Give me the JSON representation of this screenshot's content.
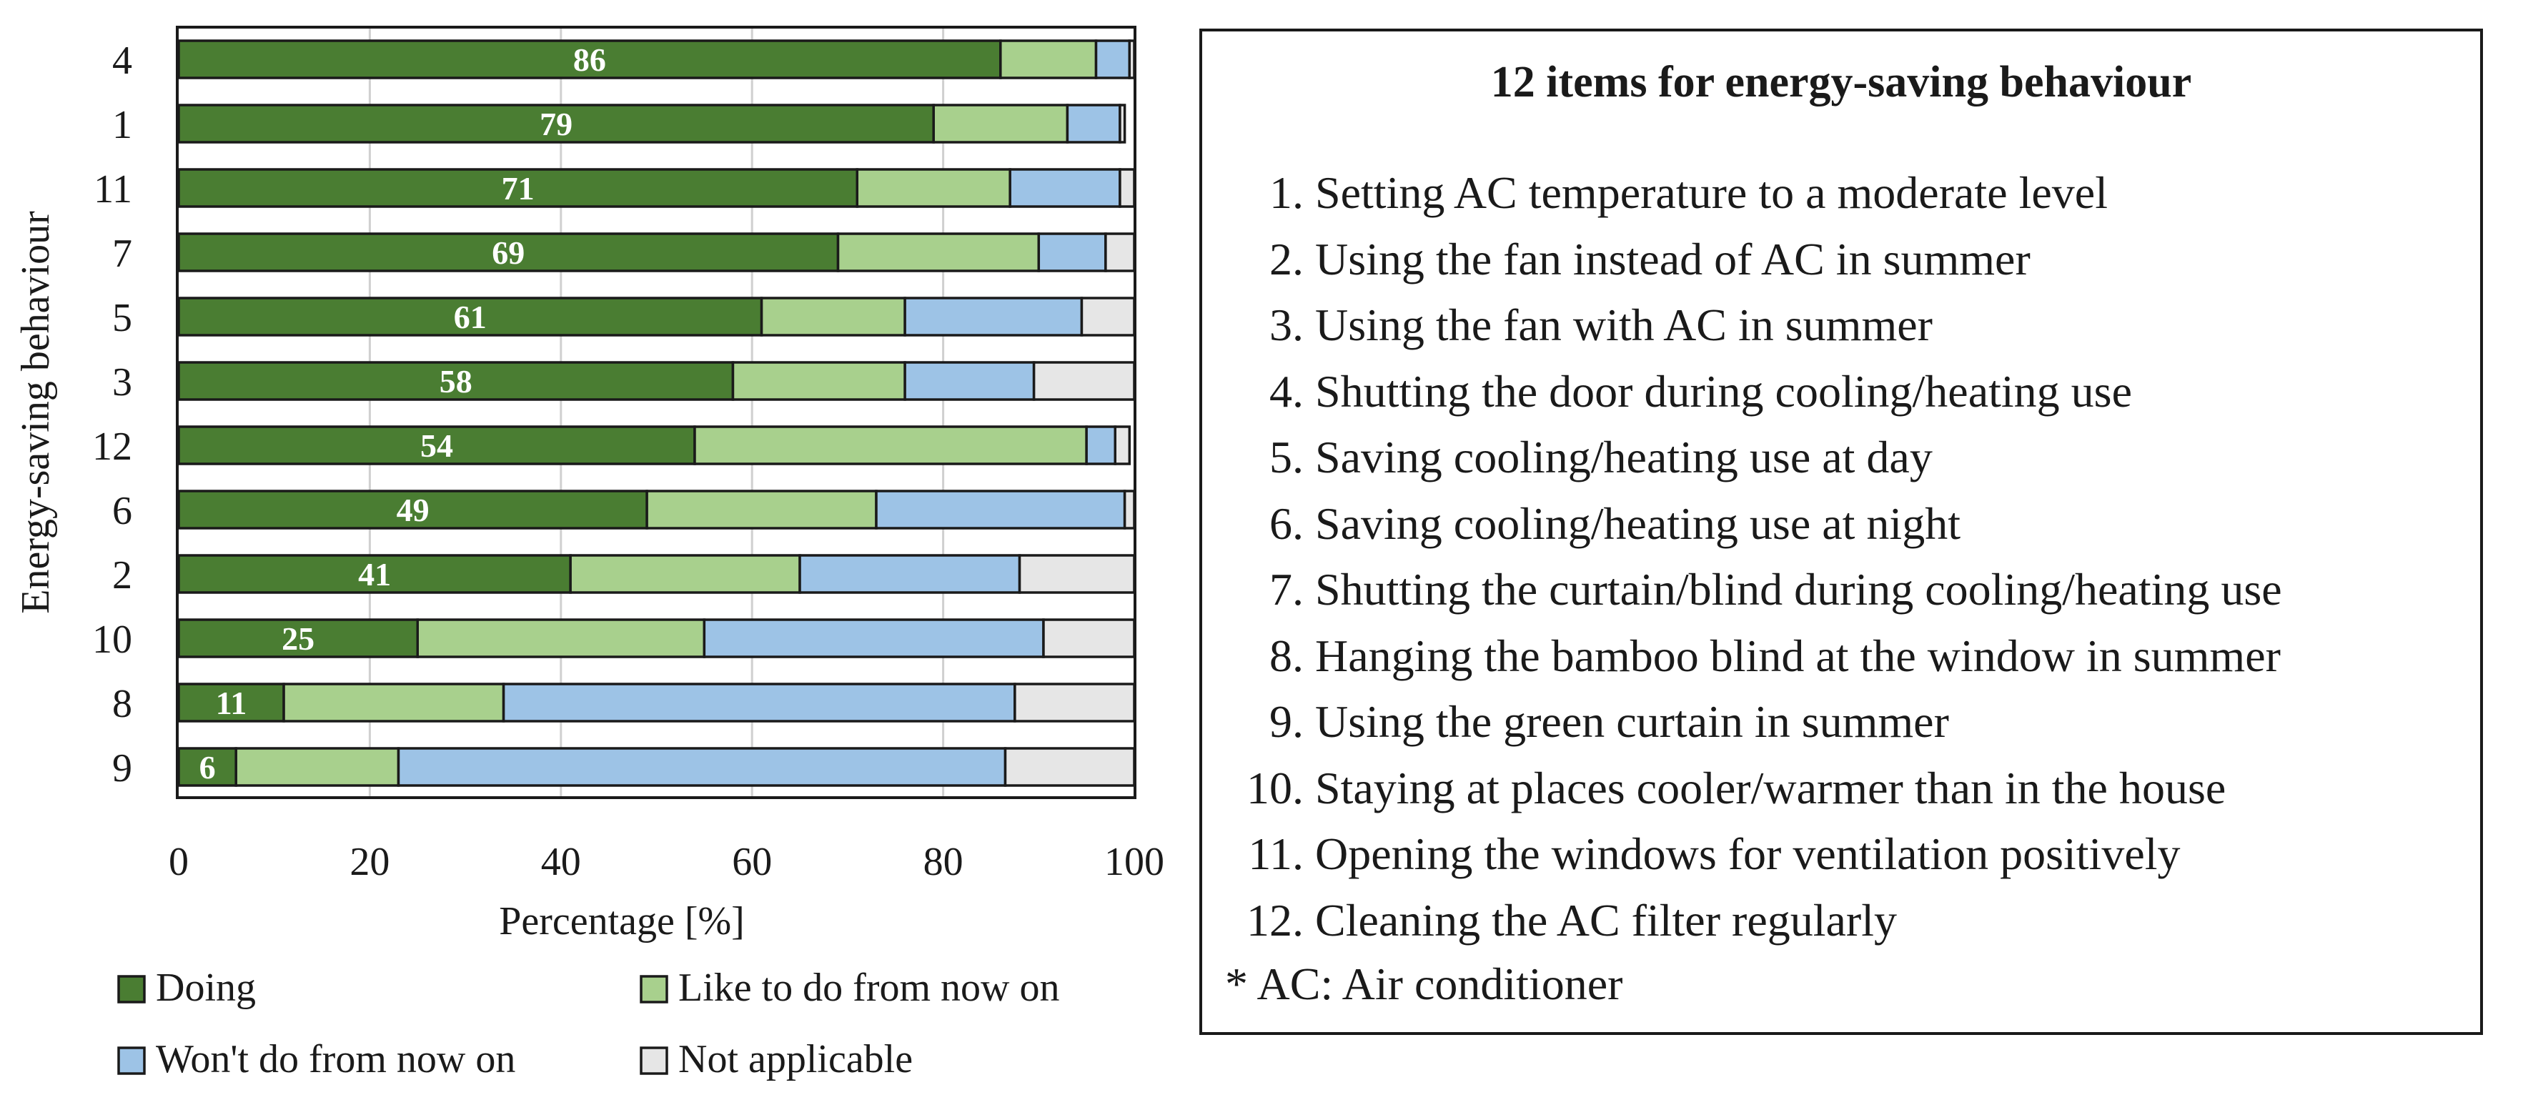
{
  "chart_data": {
    "type": "bar",
    "orientation": "horizontal",
    "stacked": true,
    "categories": [
      "4",
      "1",
      "11",
      "7",
      "5",
      "3",
      "12",
      "6",
      "2",
      "10",
      "8",
      "9"
    ],
    "series": [
      {
        "name": "Doing",
        "color": "#4a7d32",
        "values": [
          86,
          79,
          71,
          69,
          61,
          58,
          54,
          49,
          41,
          25,
          11,
          6
        ]
      },
      {
        "name": "Like to do from now on",
        "color": "#a8d08d",
        "values": [
          10,
          14,
          16,
          21,
          15,
          18,
          41,
          24,
          24,
          30,
          23,
          17
        ]
      },
      {
        "name": "Won't do from now on",
        "color": "#9dc3e6",
        "values": [
          3.5,
          5.5,
          11.5,
          7,
          18.5,
          13.5,
          3,
          26,
          23,
          35.5,
          53.5,
          63.5
        ]
      },
      {
        "name": "Not applicable",
        "color": "#e6e6e6",
        "values": [
          0.5,
          0.5,
          1.5,
          3,
          5.5,
          10.5,
          1.5,
          2,
          12,
          9.5,
          12.5,
          13.5
        ]
      }
    ],
    "data_labels": [
      "86",
      "79",
      "71",
      "69",
      "61",
      "58",
      "54",
      "49",
      "41",
      "25",
      "11",
      "6"
    ],
    "xlabel": "Percentage [%]",
    "ylabel": "Energy-saving behaviour",
    "xlim": [
      0,
      100
    ],
    "xticks": [
      "0",
      "20",
      "40",
      "60",
      "80",
      "100"
    ],
    "grid": true,
    "legend_position": "bottom"
  },
  "legend_panel": {
    "title": "12 items for energy-saving behaviour",
    "items": [
      {
        "num": "1.",
        "text": "Setting AC temperature to a moderate level"
      },
      {
        "num": "2.",
        "text": "Using the fan instead of AC in summer"
      },
      {
        "num": "3.",
        "text": "Using the fan with AC in summer"
      },
      {
        "num": "4.",
        "text": "Shutting the door during cooling/heating use"
      },
      {
        "num": "5.",
        "text": "Saving cooling/heating use at day"
      },
      {
        "num": "6.",
        "text": "Saving cooling/heating use at night"
      },
      {
        "num": "7.",
        "text": "Shutting the curtain/blind during cooling/heating use"
      },
      {
        "num": "8.",
        "text": "Hanging the bamboo blind at the window in summer"
      },
      {
        "num": "9.",
        "text": "Using the green curtain in summer"
      },
      {
        "num": "10.",
        "text": "Staying at places cooler/warmer than in the house"
      },
      {
        "num": "11.",
        "text": "Opening the windows for ventilation positively"
      },
      {
        "num": "12.",
        "text": "Cleaning the AC filter regularly"
      }
    ],
    "note": "* AC: Air conditioner"
  }
}
